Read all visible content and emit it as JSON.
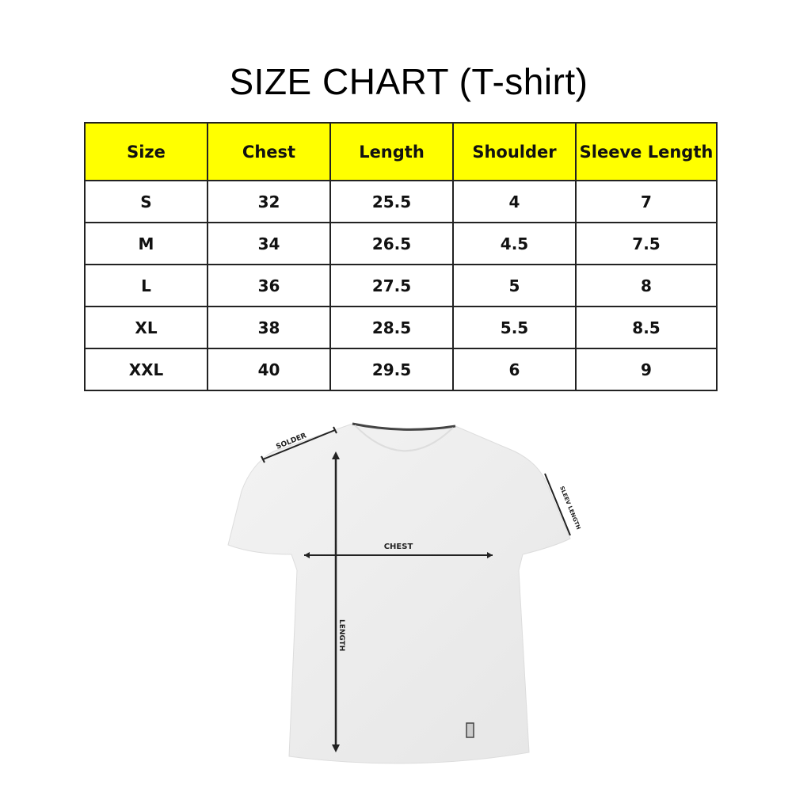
{
  "title": "SIZE CHART (T-shirt)",
  "table": {
    "headers": [
      "Size",
      "Chest",
      "Length",
      "Shoulder",
      "Sleeve Length"
    ],
    "rows": [
      [
        "S",
        "32",
        "25.5",
        "4",
        "7"
      ],
      [
        "M",
        "34",
        "26.5",
        "4.5",
        "7.5"
      ],
      [
        "L",
        "36",
        "27.5",
        "5",
        "8"
      ],
      [
        "XL",
        "38",
        "28.5",
        "5.5",
        "8.5"
      ],
      [
        "XXL",
        "40",
        "29.5",
        "6",
        "9"
      ]
    ],
    "header_color": "#ffff00"
  },
  "diagram": {
    "labels": {
      "shoulder": "SOLDER",
      "sleeve": "SLEEV LENGTH",
      "chest": "CHEST",
      "length": "LENGTH"
    }
  }
}
